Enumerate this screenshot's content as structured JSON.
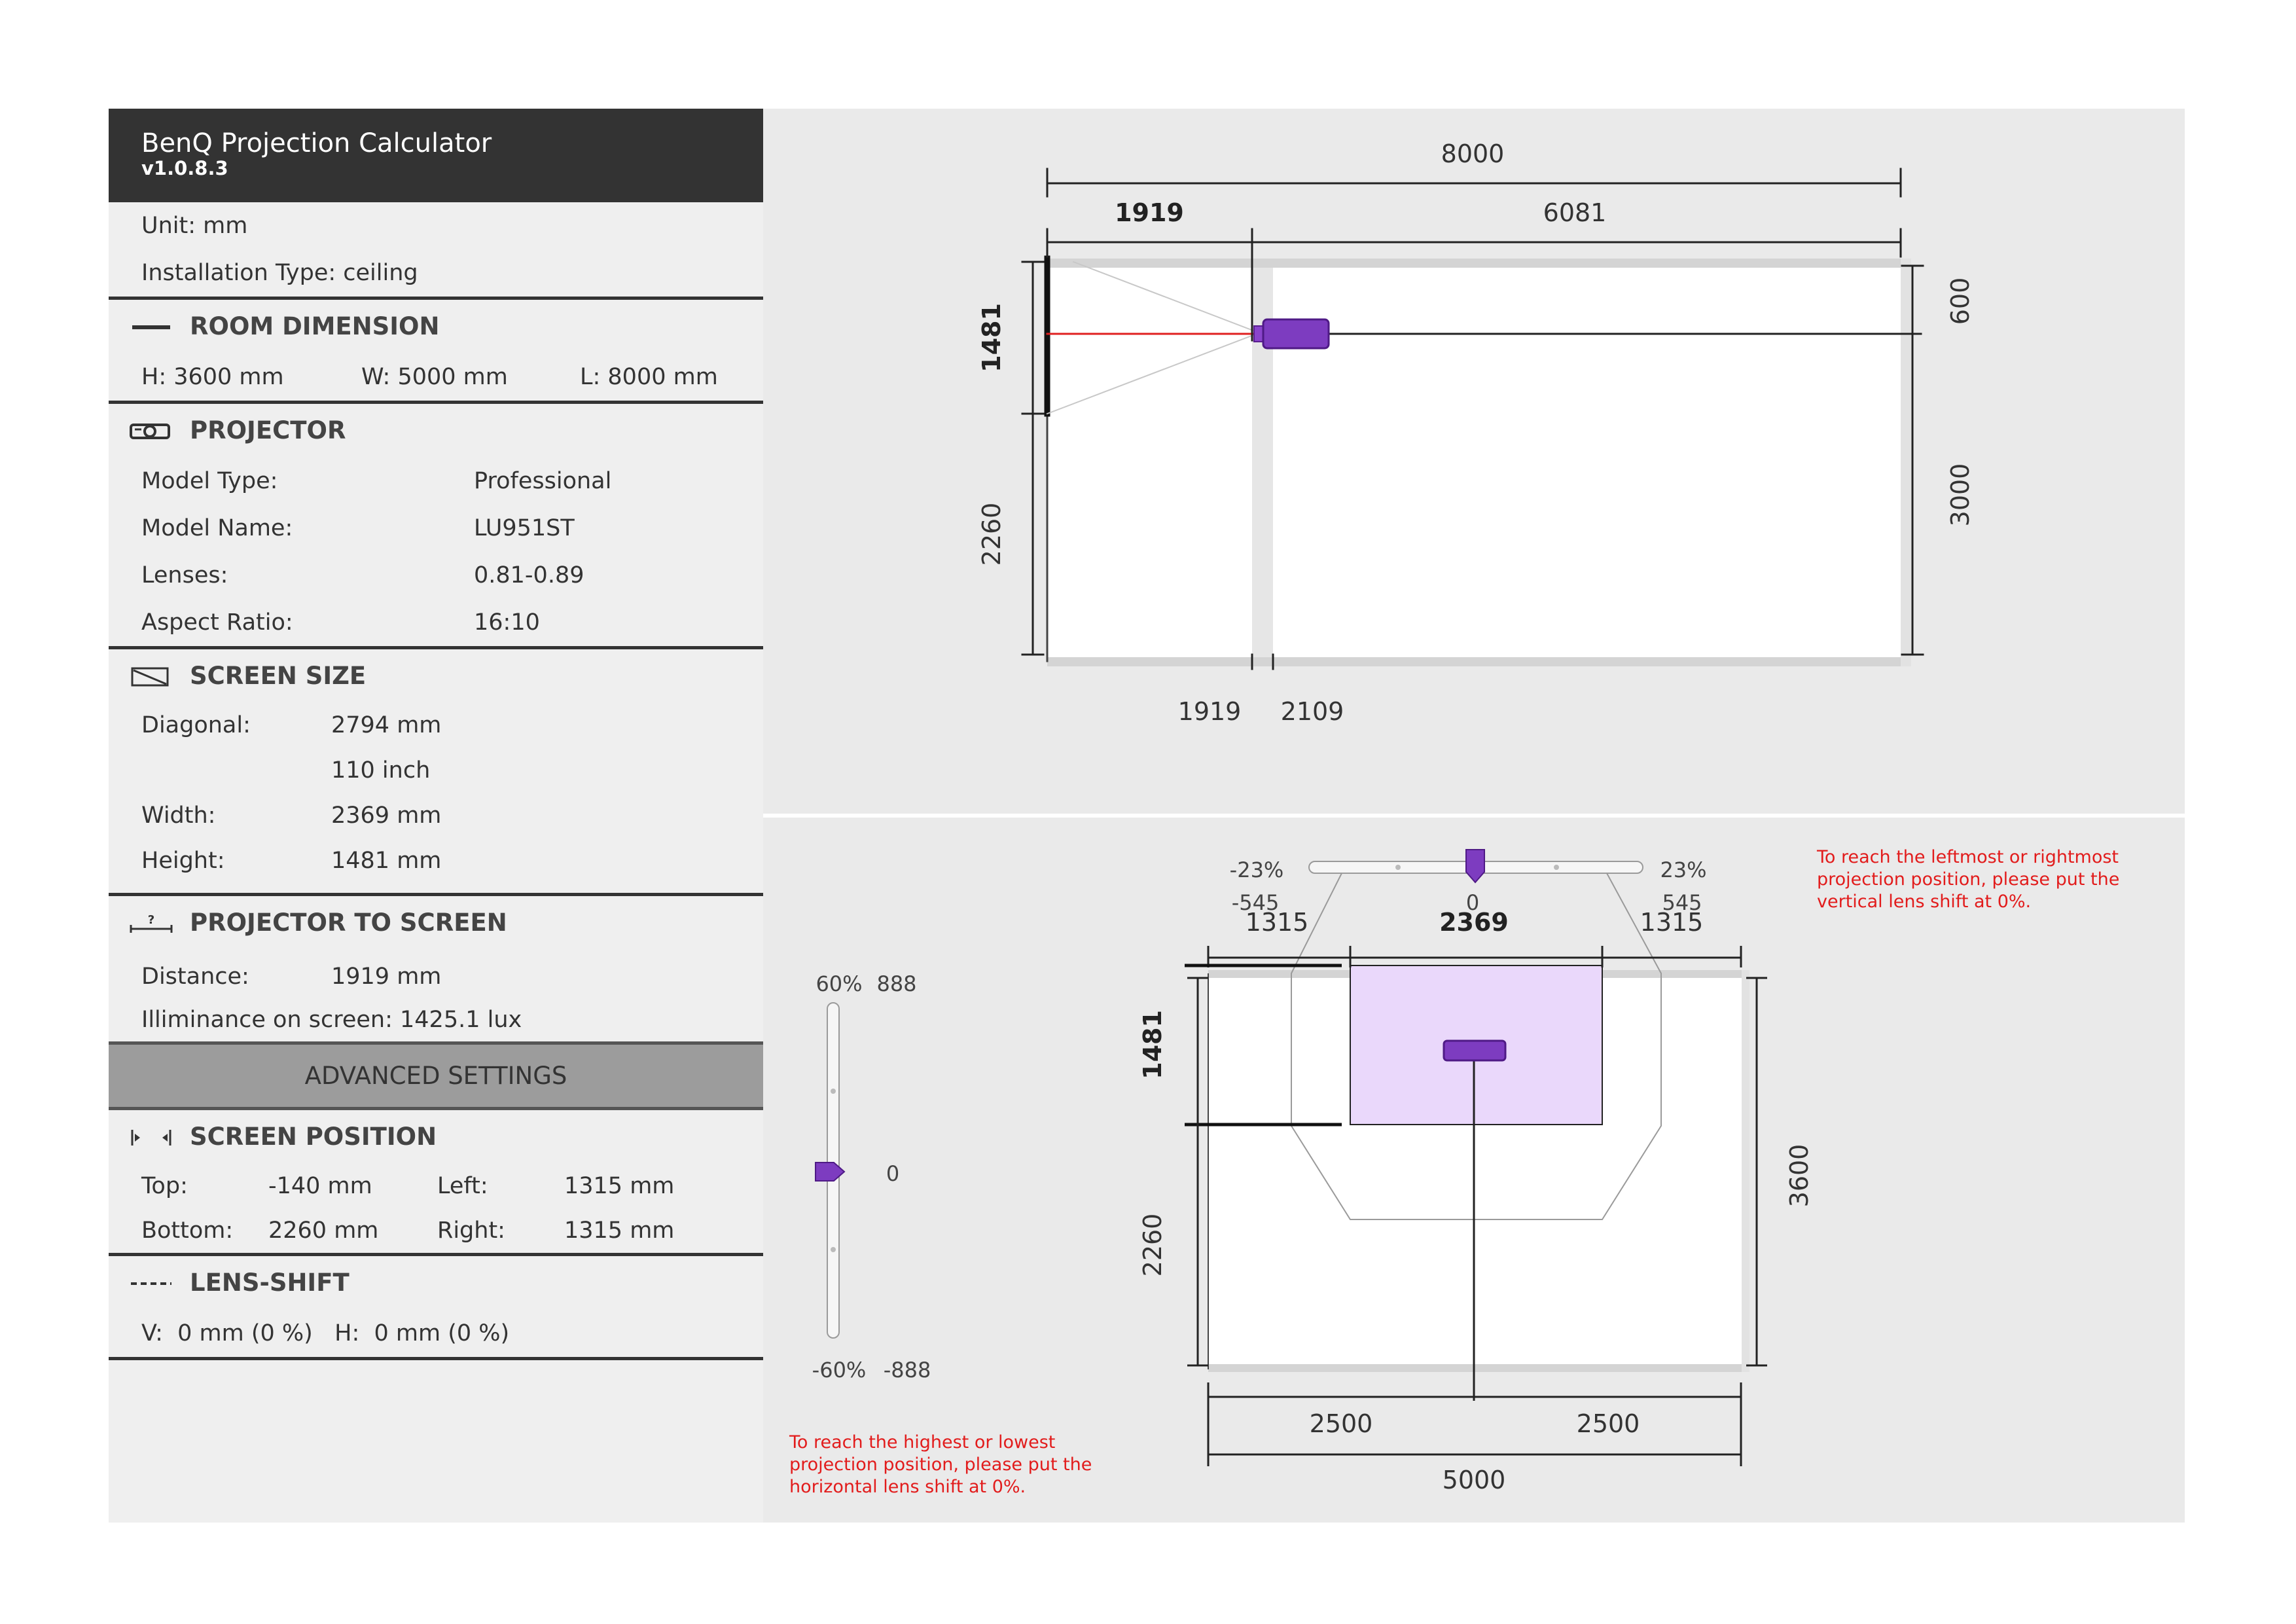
{
  "app": {
    "title": "BenQ Projection Calculator",
    "version": "v1.0.8.3"
  },
  "info": {
    "unit": "Unit: mm",
    "installation": "Installation Type: ceiling"
  },
  "room": {
    "heading": "ROOM DIMENSION",
    "h": "H: 3600 mm",
    "w": "W: 5000 mm",
    "l": "L: 8000 mm"
  },
  "projector": {
    "heading": "PROJECTOR",
    "rows": [
      {
        "label": "Model Type:",
        "value": "Professional"
      },
      {
        "label": "Model Name:",
        "value": "LU951ST"
      },
      {
        "label": "Lenses:",
        "value": "0.81-0.89"
      },
      {
        "label": "Aspect Ratio:",
        "value": "16:10"
      }
    ]
  },
  "screen_size": {
    "heading": "SCREEN SIZE",
    "rows": [
      {
        "label": "Diagonal:",
        "value": "2794 mm"
      },
      {
        "label": "",
        "value": "110 inch"
      },
      {
        "label": "Width:",
        "value": "2369 mm"
      },
      {
        "label": "Height:",
        "value": "1481 mm"
      }
    ]
  },
  "projector_to_screen": {
    "heading": "PROJECTOR TO SCREEN",
    "distance_label": "Distance:",
    "distance_value": "1919 mm",
    "illuminance": "Illiminance on screen: 1425.1 lux"
  },
  "advanced": {
    "label": "ADVANCED SETTINGS"
  },
  "screen_position": {
    "heading": "SCREEN POSITION",
    "top_label": "Top:",
    "top_value": "-140 mm",
    "left_label": "Left:",
    "left_value": "1315 mm",
    "bottom_label": "Bottom:",
    "bottom_value": "2260 mm",
    "right_label": "Right:",
    "right_value": "1315 mm"
  },
  "lens_shift": {
    "heading": "LENS-SHIFT",
    "value": "V:  0 mm (0 %)   H:  0 mm (0 %)"
  },
  "side_view": {
    "length": "8000",
    "throw": "1919",
    "remaining": "6081",
    "screen_height": "1481",
    "below_screen": "2260",
    "top_offset": "600",
    "below_proj": "3000",
    "bottom_a": "1919",
    "bottom_b": "2109"
  },
  "front_view": {
    "h_min_pct": "-23%",
    "h_max_pct": "23%",
    "h_min_mm": "-545",
    "h_max_mm": "545",
    "h_zero": "0",
    "left_gap": "1315",
    "screen_width": "2369",
    "right_gap": "1315",
    "screen_height": "1481",
    "below_screen": "2260",
    "room_height": "3600",
    "half_left": "2500",
    "half_right": "2500",
    "room_width": "5000",
    "v_max_pct": "60%",
    "v_max_mm": "888",
    "v_zero": "0",
    "v_min_pct": "-60%",
    "v_min_mm": "-888",
    "note_h": [
      "To reach the leftmost or rightmost",
      "projection position, please put the",
      "vertical lens shift at 0%."
    ],
    "note_v": [
      "To reach the highest or lowest",
      "projection position, please put the",
      "horizontal lens shift at 0%."
    ]
  },
  "colors": {
    "accent": "#7d3cc0",
    "header_bg": "#333333",
    "warning": "#e21c1c",
    "screen_fill": "#ead8fb"
  }
}
